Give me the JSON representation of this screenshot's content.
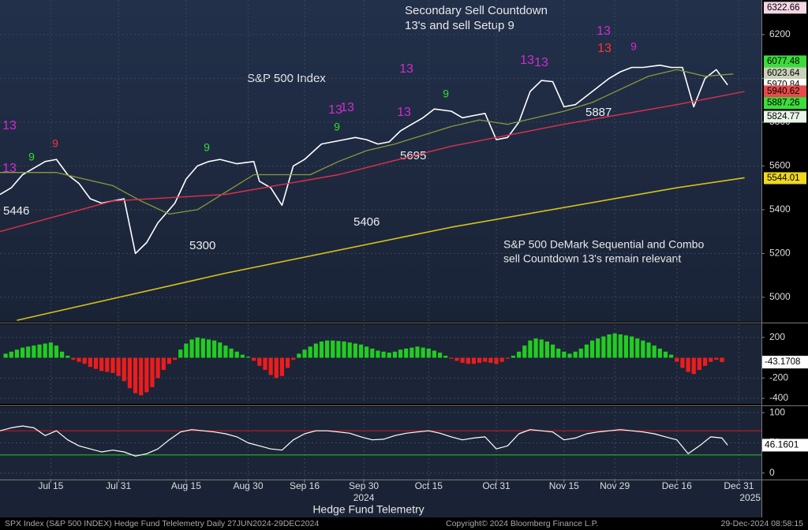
{
  "chart_data": [
    {
      "type": "line",
      "title": "S&P 500 Index",
      "notes": [
        "Secondary Sell Countdown",
        "13's and sell Setup 9",
        "S&P 500 DeMark Sequential and Combo",
        "sell Countdown 13's remain relevant"
      ],
      "xlabel": "Hedge Fund Telemetry",
      "level_annotations": [
        5446,
        5300,
        5406,
        5695,
        5887
      ],
      "markers": [
        {
          "label": "13",
          "color": "#d22bd2"
        },
        {
          "label": "13",
          "color": "#d22bd2"
        },
        {
          "label": "9",
          "color": "#33dd33"
        },
        {
          "label": "9",
          "color": "#ff3333"
        },
        {
          "label": "9",
          "color": "#33dd33"
        },
        {
          "label": "13",
          "color": "#d22bd2"
        },
        {
          "label": "13",
          "color": "#d22bd2"
        },
        {
          "label": "9",
          "color": "#33dd33"
        },
        {
          "label": "13",
          "color": "#d22bd2"
        },
        {
          "label": "13",
          "color": "#d22bd2"
        },
        {
          "label": "9",
          "color": "#33dd33"
        },
        {
          "label": "13",
          "color": "#d22bd2"
        },
        {
          "label": "13",
          "color": "#d22bd2"
        },
        {
          "label": "13",
          "color": "#d22bd2"
        },
        {
          "label": "13",
          "color": "#ff3333"
        },
        {
          "label": "9",
          "color": "#d22bd2"
        }
      ],
      "xlim": [
        0,
        135
      ],
      "xticks": [
        {
          "value": 9,
          "label": "Jul 15"
        },
        {
          "value": 21,
          "label": "Jul 31"
        },
        {
          "value": 33,
          "label": "Aug 15"
        },
        {
          "value": 44,
          "label": "Aug 30"
        },
        {
          "value": 54,
          "label": "Sep 16"
        },
        {
          "value": 64.5,
          "label": "Sep 30"
        },
        {
          "value": 76,
          "label": "Oct 15"
        },
        {
          "value": 88,
          "label": "Oct 31"
        },
        {
          "value": 100,
          "label": "Nov 15"
        },
        {
          "value": 109,
          "label": "Nov 29"
        },
        {
          "value": 120,
          "label": "Dec 16"
        },
        {
          "value": 131,
          "label": "Dec 31"
        }
      ],
      "year_ticks": [
        {
          "value": 64.5,
          "label": "2024"
        },
        {
          "value": 133,
          "label": "2025"
        }
      ],
      "ylim": [
        4888,
        6358
      ],
      "yticks": [
        5000,
        5200,
        5400,
        5600,
        5800,
        6000,
        6200
      ],
      "grid": true,
      "right_labels": [
        {
          "value": 6322.66,
          "color": "#f4d6e4"
        },
        {
          "value": 6077.48,
          "color": "#3ddc3d"
        },
        {
          "value": 6023.64,
          "color": "#c9d1b8"
        },
        {
          "value": 5970.84,
          "color": "#ffffff"
        },
        {
          "value": 5940.62,
          "color": "#e84a4a"
        },
        {
          "value": 5887.26,
          "color": "#3ddc3d"
        },
        {
          "value": 5824.77,
          "color": "#e8f4e8"
        },
        {
          "value": 5544.01,
          "color": "#f0d820"
        }
      ],
      "series": [
        {
          "color": "#ffffff",
          "width": 1.6,
          "x": [
            0,
            2,
            4,
            6,
            8,
            10,
            12,
            14,
            16,
            18,
            20,
            22,
            24,
            26,
            28,
            31,
            33,
            35,
            37,
            39,
            42,
            45,
            46,
            48,
            50,
            52,
            54,
            57,
            59,
            61,
            63,
            65,
            67,
            69,
            71,
            73,
            75,
            77,
            80,
            82,
            84,
            86,
            88,
            90,
            92,
            94,
            96,
            98,
            100,
            102,
            104,
            106,
            108,
            110,
            112,
            114,
            117,
            119,
            121,
            123,
            125,
            127,
            129
          ],
          "values": [
            5470,
            5500,
            5560,
            5590,
            5620,
            5630,
            5560,
            5520,
            5450,
            5430,
            5440,
            5450,
            5200,
            5250,
            5340,
            5430,
            5540,
            5600,
            5620,
            5630,
            5610,
            5620,
            5530,
            5500,
            5420,
            5600,
            5630,
            5700,
            5710,
            5720,
            5730,
            5720,
            5700,
            5710,
            5760,
            5790,
            5820,
            5860,
            5850,
            5820,
            5830,
            5840,
            5720,
            5730,
            5800,
            5940,
            5990,
            5985,
            5870,
            5880,
            5920,
            5960,
            6000,
            6030,
            6050,
            6050,
            6060,
            6050,
            6050,
            5870,
            6000,
            6040,
            5970
          ]
        },
        {
          "color": "#8a9a3a",
          "width": 1.3,
          "x": [
            0,
            10,
            20,
            25,
            30,
            35,
            40,
            45,
            50,
            55,
            60,
            65,
            70,
            75,
            80,
            85,
            90,
            95,
            100,
            105,
            110,
            115,
            120,
            125,
            130
          ],
          "values": [
            5570,
            5570,
            5510,
            5440,
            5380,
            5400,
            5480,
            5560,
            5560,
            5560,
            5620,
            5670,
            5700,
            5740,
            5780,
            5810,
            5790,
            5820,
            5850,
            5890,
            5950,
            6010,
            6040,
            6010,
            6020
          ]
        },
        {
          "color": "#e0304a",
          "width": 1.4,
          "x": [
            0,
            20,
            40,
            60,
            80,
            100,
            120,
            132
          ],
          "values": [
            5300,
            5440,
            5470,
            5560,
            5690,
            5790,
            5880,
            5940
          ]
        },
        {
          "color": "#d4c21a",
          "width": 1.6,
          "x": [
            3,
            40,
            80,
            120,
            132
          ],
          "values": [
            4895,
            5110,
            5320,
            5500,
            5546
          ]
        }
      ]
    },
    {
      "type": "bar",
      "xlim": [
        0,
        135
      ],
      "ylim": [
        -454,
        331
      ],
      "yticks": [
        200,
        -200,
        -400
      ],
      "grid": true,
      "positive_color": "#22cc22",
      "negative_color": "#ee1c1c",
      "x": [
        1,
        2,
        3,
        4,
        5,
        6,
        7,
        8,
        9,
        10,
        11,
        12,
        13,
        14,
        15,
        16,
        17,
        18,
        19,
        20,
        21,
        22,
        23,
        24,
        25,
        26,
        27,
        28,
        29,
        30,
        31,
        32,
        33,
        34,
        35,
        36,
        37,
        38,
        39,
        40,
        41,
        42,
        43,
        44,
        45,
        46,
        47,
        48,
        49,
        50,
        51,
        52,
        53,
        54,
        55,
        56,
        57,
        58,
        59,
        60,
        61,
        62,
        63,
        64,
        65,
        66,
        67,
        68,
        69,
        70,
        71,
        72,
        73,
        74,
        75,
        76,
        77,
        78,
        79,
        80,
        81,
        82,
        83,
        84,
        85,
        86,
        87,
        88,
        89,
        90,
        91,
        92,
        93,
        94,
        95,
        96,
        97,
        98,
        99,
        100,
        101,
        102,
        103,
        104,
        105,
        106,
        107,
        108,
        109,
        110,
        111,
        112,
        113,
        114,
        115,
        116,
        117,
        118,
        119,
        120,
        121,
        122,
        123,
        124,
        125,
        126,
        127,
        128
      ],
      "series": [
        {
          "values": [
            40,
            60,
            80,
            100,
            110,
            120,
            130,
            140,
            150,
            120,
            60,
            20,
            -20,
            -40,
            -60,
            -90,
            -110,
            -130,
            -140,
            -150,
            -180,
            -230,
            -300,
            -350,
            -370,
            -340,
            -290,
            -200,
            -120,
            -60,
            -20,
            80,
            140,
            180,
            200,
            190,
            180,
            170,
            150,
            120,
            90,
            60,
            30,
            10,
            -30,
            -80,
            -120,
            -170,
            -200,
            -180,
            -100,
            -20,
            40,
            80,
            110,
            140,
            160,
            170,
            170,
            165,
            160,
            150,
            140,
            130,
            110,
            90,
            70,
            60,
            50,
            60,
            80,
            90,
            100,
            110,
            100,
            90,
            70,
            50,
            20,
            -10,
            -30,
            -50,
            -60,
            -60,
            -50,
            -40,
            -50,
            -60,
            -40,
            -10,
            20,
            60,
            120,
            170,
            190,
            180,
            160,
            130,
            90,
            60,
            40,
            60,
            90,
            130,
            170,
            190,
            210,
            230,
            240,
            230,
            220,
            210,
            190,
            170,
            150,
            120,
            90,
            60,
            30,
            -40,
            -100,
            -140,
            -160,
            -120,
            -80,
            -40,
            -20,
            -43.1708
          ]
        }
      ]
    },
    {
      "type": "line",
      "xlim": [
        0,
        135
      ],
      "ylim": [
        -10.8,
        109.5
      ],
      "yticks": [
        100,
        50,
        0
      ],
      "grid": true,
      "hlines": [
        {
          "value": 70,
          "color": "#c8161e"
        },
        {
          "value": 30,
          "color": "#22b822"
        }
      ],
      "series": [
        {
          "color": "#ffffff",
          "width": 1.2,
          "x": [
            0,
            2,
            4,
            6,
            8,
            10,
            12,
            14,
            16,
            18,
            20,
            22,
            24,
            26,
            28,
            30,
            32,
            34,
            36,
            38,
            40,
            42,
            44,
            46,
            48,
            50,
            52,
            54,
            56,
            58,
            60,
            62,
            64,
            66,
            68,
            70,
            72,
            74,
            76,
            78,
            80,
            82,
            84,
            86,
            88,
            90,
            92,
            94,
            96,
            98,
            100,
            102,
            104,
            106,
            108,
            110,
            112,
            114,
            116,
            118,
            120,
            122,
            124,
            126,
            128,
            129
          ],
          "values": [
            70,
            75,
            78,
            75,
            62,
            70,
            55,
            45,
            40,
            35,
            38,
            35,
            28,
            32,
            40,
            55,
            68,
            72,
            70,
            68,
            65,
            60,
            50,
            45,
            40,
            38,
            55,
            65,
            70,
            70,
            68,
            66,
            60,
            55,
            56,
            62,
            66,
            68,
            70,
            66,
            60,
            55,
            58,
            60,
            40,
            45,
            65,
            72,
            70,
            68,
            55,
            58,
            65,
            68,
            70,
            72,
            70,
            68,
            65,
            60,
            55,
            32,
            45,
            60,
            58,
            46.1601
          ]
        }
      ]
    }
  ],
  "footer": {
    "left": "SPX Index (S&P 500 INDEX) Hedge Fund Telelemetry  Daily 27JUN2024-29DEC2024",
    "center": "Copyright© 2024 Bloomberg Finance L.P.",
    "right": "29-Dec-2024 08:58:15"
  }
}
